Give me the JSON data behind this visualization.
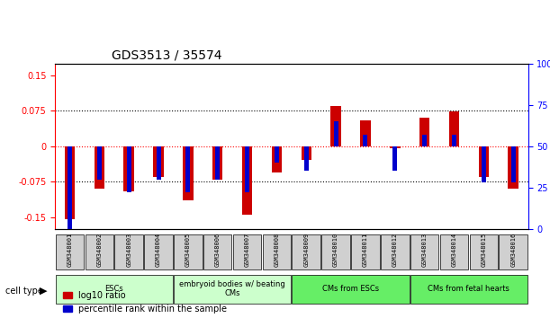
{
  "title": "GDS3513 / 35574",
  "samples": [
    "GSM348001",
    "GSM348002",
    "GSM348003",
    "GSM348004",
    "GSM348005",
    "GSM348006",
    "GSM348007",
    "GSM348008",
    "GSM348009",
    "GSM348010",
    "GSM348011",
    "GSM348012",
    "GSM348013",
    "GSM348014",
    "GSM348015",
    "GSM348016"
  ],
  "log10_ratio": [
    -0.155,
    -0.09,
    -0.095,
    -0.065,
    -0.115,
    -0.07,
    -0.145,
    -0.055,
    -0.028,
    0.085,
    0.055,
    -0.005,
    0.06,
    0.073,
    -0.065,
    -0.09
  ],
  "percentile_rank": [
    0,
    30,
    22,
    30,
    22,
    30,
    22,
    40,
    35,
    65,
    57,
    35,
    57,
    57,
    28,
    28
  ],
  "ylim_left": [
    -0.175,
    0.175
  ],
  "ylim_right": [
    0,
    100
  ],
  "yticks_left": [
    -0.15,
    -0.075,
    0,
    0.075,
    0.15
  ],
  "yticks_right": [
    0,
    25,
    50,
    75,
    100
  ],
  "ytick_labels_left": [
    "-0.15",
    "-0.075",
    "0",
    "0.075",
    "0.15"
  ],
  "ytick_labels_right": [
    "0",
    "25",
    "50",
    "75",
    "100%"
  ],
  "hline_y": [
    0.075,
    0,
    -0.075
  ],
  "hline_styles": [
    "dotted",
    "dotted_red",
    "dotted"
  ],
  "cell_type_groups": [
    {
      "label": "ESCs",
      "start": 0,
      "end": 3,
      "color": "#b3ffb3"
    },
    {
      "label": "embryoid bodies w/ beating\nCMs",
      "start": 4,
      "end": 7,
      "color": "#ccffcc"
    },
    {
      "label": "CMs from ESCs",
      "start": 8,
      "end": 11,
      "color": "#66ff66"
    },
    {
      "label": "CMs from fetal hearts",
      "start": 12,
      "end": 15,
      "color": "#66ff66"
    }
  ],
  "bar_color_red": "#cc0000",
  "bar_color_blue": "#0000cc",
  "bar_width": 0.35,
  "blue_bar_width": 0.15,
  "percentile_50": 50
}
